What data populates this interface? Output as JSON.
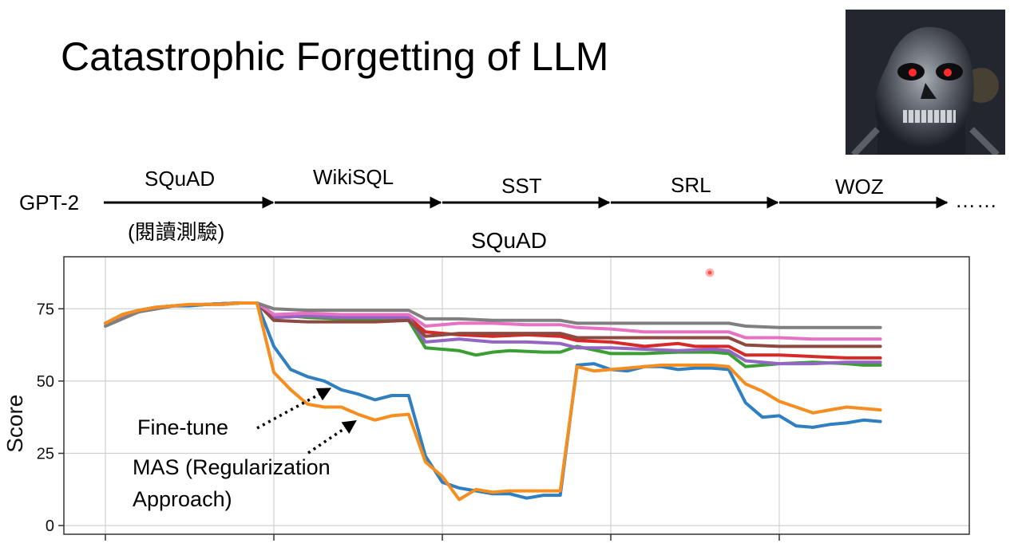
{
  "slide": {
    "title": "Catastrophic Forgetting of LLM",
    "image_alt": "terminator-robot-face"
  },
  "pipeline": {
    "model": "GPT-2",
    "tasks": [
      "SQuAD",
      "WikiSQL",
      "SST",
      "SRL",
      "WOZ"
    ],
    "first_task_note": "(閱讀測驗)",
    "ellipsis": "……"
  },
  "annotations": {
    "finetune": "Fine-tune",
    "mas_line1": "MAS (Regularization",
    "mas_line2": "Approach)"
  },
  "colors": {
    "blue": "#2f7fc1",
    "orange": "#f58d1f",
    "green": "#3a9f33",
    "red": "#d62a28",
    "purple": "#9466c4",
    "brown": "#8c4a40",
    "pink": "#e672c3",
    "gray": "#7f7f7f"
  },
  "chart_data": {
    "type": "line",
    "title": "SQuAD",
    "xlabel": "",
    "ylabel": "Score",
    "ylim": [
      -3,
      93
    ],
    "xlim": [
      0,
      50
    ],
    "yticks": [
      0,
      25,
      50,
      75
    ],
    "x_boundaries": [
      10,
      20,
      30,
      40
    ],
    "grid": true,
    "series": [
      {
        "name": "Fine-tune",
        "color": "#2f7fc1",
        "points": [
          [
            0,
            70
          ],
          [
            1,
            73
          ],
          [
            2,
            74.5
          ],
          [
            3,
            75.5
          ],
          [
            4,
            76
          ],
          [
            5,
            76
          ],
          [
            6,
            76.5
          ],
          [
            7,
            76.5
          ],
          [
            8,
            77
          ],
          [
            9,
            77
          ],
          [
            10,
            62
          ],
          [
            11,
            54
          ],
          [
            12,
            51.5
          ],
          [
            13,
            50
          ],
          [
            14,
            47
          ],
          [
            15,
            45.5
          ],
          [
            16,
            43.5
          ],
          [
            17,
            45
          ],
          [
            18,
            45
          ],
          [
            19,
            24
          ],
          [
            20,
            15
          ],
          [
            21,
            13
          ],
          [
            22,
            12
          ],
          [
            23,
            11
          ],
          [
            24,
            11
          ],
          [
            25,
            9.5
          ],
          [
            26,
            10.5
          ],
          [
            27,
            10.5
          ],
          [
            28,
            55.5
          ],
          [
            29,
            56
          ],
          [
            30,
            54
          ],
          [
            31,
            53.5
          ],
          [
            32,
            55
          ],
          [
            33,
            55
          ],
          [
            34,
            54
          ],
          [
            35,
            54.5
          ],
          [
            36,
            54.5
          ],
          [
            37,
            54
          ],
          [
            38,
            42.5
          ],
          [
            39,
            37.5
          ],
          [
            40,
            38
          ],
          [
            41,
            34.5
          ],
          [
            42,
            34
          ],
          [
            43,
            35
          ],
          [
            44,
            35.5
          ],
          [
            45,
            36.5
          ],
          [
            46,
            36
          ]
        ]
      },
      {
        "name": "MAS (Regularization Approach)",
        "color": "#f58d1f",
        "points": [
          [
            0,
            70
          ],
          [
            1,
            73
          ],
          [
            2,
            74.5
          ],
          [
            3,
            75.5
          ],
          [
            4,
            76
          ],
          [
            5,
            76.5
          ],
          [
            6,
            76.5
          ],
          [
            7,
            76.5
          ],
          [
            8,
            77
          ],
          [
            9,
            77
          ],
          [
            10,
            53
          ],
          [
            11,
            47
          ],
          [
            12,
            42
          ],
          [
            13,
            41
          ],
          [
            14,
            41
          ],
          [
            15,
            38.5
          ],
          [
            16,
            36.5
          ],
          [
            17,
            38
          ],
          [
            18,
            38.5
          ],
          [
            19,
            22
          ],
          [
            20,
            17
          ],
          [
            21,
            9
          ],
          [
            22,
            12.5
          ],
          [
            23,
            11.5
          ],
          [
            24,
            12
          ],
          [
            25,
            12
          ],
          [
            26,
            12
          ],
          [
            27,
            12
          ],
          [
            28,
            55
          ],
          [
            29,
            53.5
          ],
          [
            30,
            54
          ],
          [
            31,
            54.5
          ],
          [
            32,
            55
          ],
          [
            33,
            55.5
          ],
          [
            34,
            55.5
          ],
          [
            35,
            55.5
          ],
          [
            36,
            55.5
          ],
          [
            37,
            55
          ],
          [
            38,
            49
          ],
          [
            39,
            46.5
          ],
          [
            40,
            43
          ],
          [
            41,
            41
          ],
          [
            42,
            39
          ],
          [
            43,
            40
          ],
          [
            44,
            41
          ],
          [
            45,
            40.5
          ],
          [
            46,
            40
          ]
        ]
      },
      {
        "name": "green",
        "color": "#3a9f33",
        "points": [
          [
            0,
            70
          ],
          [
            2,
            74
          ],
          [
            4,
            76
          ],
          [
            6,
            76.5
          ],
          [
            8,
            77
          ],
          [
            9,
            77
          ],
          [
            10,
            73
          ],
          [
            12,
            72
          ],
          [
            14,
            71.5
          ],
          [
            16,
            71.5
          ],
          [
            18,
            71
          ],
          [
            19,
            61.5
          ],
          [
            21,
            60.5
          ],
          [
            22,
            59
          ],
          [
            23,
            60
          ],
          [
            24,
            60.5
          ],
          [
            26,
            60
          ],
          [
            27,
            60
          ],
          [
            28,
            62
          ],
          [
            30,
            59.5
          ],
          [
            32,
            59.5
          ],
          [
            34,
            60
          ],
          [
            36,
            60
          ],
          [
            37,
            59.5
          ],
          [
            38,
            55
          ],
          [
            40,
            56
          ],
          [
            42,
            56.5
          ],
          [
            44,
            56
          ],
          [
            45,
            55.5
          ],
          [
            46,
            55.5
          ]
        ]
      },
      {
        "name": "red",
        "color": "#d62a28",
        "points": [
          [
            0,
            70
          ],
          [
            2,
            74
          ],
          [
            4,
            76
          ],
          [
            6,
            76.5
          ],
          [
            8,
            77
          ],
          [
            9,
            77
          ],
          [
            10,
            72
          ],
          [
            12,
            72.5
          ],
          [
            14,
            72
          ],
          [
            16,
            72
          ],
          [
            18,
            72
          ],
          [
            19,
            67
          ],
          [
            21,
            66
          ],
          [
            23,
            65.5
          ],
          [
            25,
            66
          ],
          [
            27,
            65.5
          ],
          [
            28,
            64
          ],
          [
            30,
            63.5
          ],
          [
            32,
            62
          ],
          [
            34,
            63
          ],
          [
            35,
            62
          ],
          [
            37,
            62
          ],
          [
            38,
            59
          ],
          [
            40,
            59
          ],
          [
            42,
            58.5
          ],
          [
            44,
            58
          ],
          [
            46,
            58
          ]
        ]
      },
      {
        "name": "purple",
        "color": "#9466c4",
        "points": [
          [
            0,
            70
          ],
          [
            2,
            74
          ],
          [
            4,
            76
          ],
          [
            6,
            76.5
          ],
          [
            8,
            77
          ],
          [
            9,
            77
          ],
          [
            10,
            72
          ],
          [
            12,
            72.5
          ],
          [
            14,
            72
          ],
          [
            16,
            72
          ],
          [
            18,
            72
          ],
          [
            19,
            63.5
          ],
          [
            21,
            64.5
          ],
          [
            23,
            63.5
          ],
          [
            25,
            63.5
          ],
          [
            27,
            63
          ],
          [
            28,
            61.5
          ],
          [
            30,
            61.5
          ],
          [
            32,
            61
          ],
          [
            34,
            60.5
          ],
          [
            36,
            61
          ],
          [
            37,
            60.5
          ],
          [
            38,
            57
          ],
          [
            40,
            56
          ],
          [
            42,
            56
          ],
          [
            44,
            56.5
          ],
          [
            46,
            56.5
          ]
        ]
      },
      {
        "name": "brown",
        "color": "#8c4a40",
        "points": [
          [
            0,
            70
          ],
          [
            2,
            74
          ],
          [
            4,
            76
          ],
          [
            6,
            76.5
          ],
          [
            8,
            77
          ],
          [
            9,
            77
          ],
          [
            10,
            71
          ],
          [
            12,
            70.5
          ],
          [
            14,
            70.5
          ],
          [
            16,
            70.5
          ],
          [
            18,
            71
          ],
          [
            19,
            65.5
          ],
          [
            21,
            66.5
          ],
          [
            23,
            66.5
          ],
          [
            25,
            66.5
          ],
          [
            27,
            66.5
          ],
          [
            28,
            65
          ],
          [
            30,
            65
          ],
          [
            32,
            65
          ],
          [
            34,
            65
          ],
          [
            36,
            65
          ],
          [
            37,
            65
          ],
          [
            38,
            62.5
          ],
          [
            40,
            62
          ],
          [
            42,
            62
          ],
          [
            44,
            62
          ],
          [
            46,
            62
          ]
        ]
      },
      {
        "name": "pink",
        "color": "#e672c3",
        "points": [
          [
            0,
            70
          ],
          [
            2,
            74
          ],
          [
            4,
            76
          ],
          [
            6,
            76.5
          ],
          [
            8,
            77
          ],
          [
            9,
            77
          ],
          [
            10,
            73
          ],
          [
            12,
            73.5
          ],
          [
            14,
            73
          ],
          [
            16,
            73
          ],
          [
            18,
            73
          ],
          [
            19,
            69
          ],
          [
            21,
            70
          ],
          [
            23,
            70
          ],
          [
            25,
            69.5
          ],
          [
            27,
            69.5
          ],
          [
            28,
            68.5
          ],
          [
            30,
            68
          ],
          [
            32,
            67
          ],
          [
            34,
            67
          ],
          [
            36,
            67
          ],
          [
            37,
            67
          ],
          [
            38,
            65
          ],
          [
            40,
            65
          ],
          [
            42,
            64.5
          ],
          [
            44,
            64.5
          ],
          [
            46,
            64.5
          ]
        ]
      },
      {
        "name": "gray",
        "color": "#7f7f7f",
        "points": [
          [
            0,
            69
          ],
          [
            2,
            74
          ],
          [
            4,
            76
          ],
          [
            6,
            76.5
          ],
          [
            8,
            77
          ],
          [
            9,
            77
          ],
          [
            10,
            75
          ],
          [
            12,
            74.5
          ],
          [
            14,
            74.5
          ],
          [
            16,
            74.5
          ],
          [
            18,
            74.5
          ],
          [
            19,
            71.5
          ],
          [
            21,
            71.5
          ],
          [
            23,
            71
          ],
          [
            25,
            71
          ],
          [
            27,
            71
          ],
          [
            28,
            70
          ],
          [
            30,
            70
          ],
          [
            32,
            70
          ],
          [
            34,
            70
          ],
          [
            36,
            70
          ],
          [
            37,
            70
          ],
          [
            38,
            69
          ],
          [
            40,
            68.5
          ],
          [
            42,
            68.5
          ],
          [
            44,
            68.5
          ],
          [
            46,
            68.5
          ]
        ]
      }
    ]
  }
}
